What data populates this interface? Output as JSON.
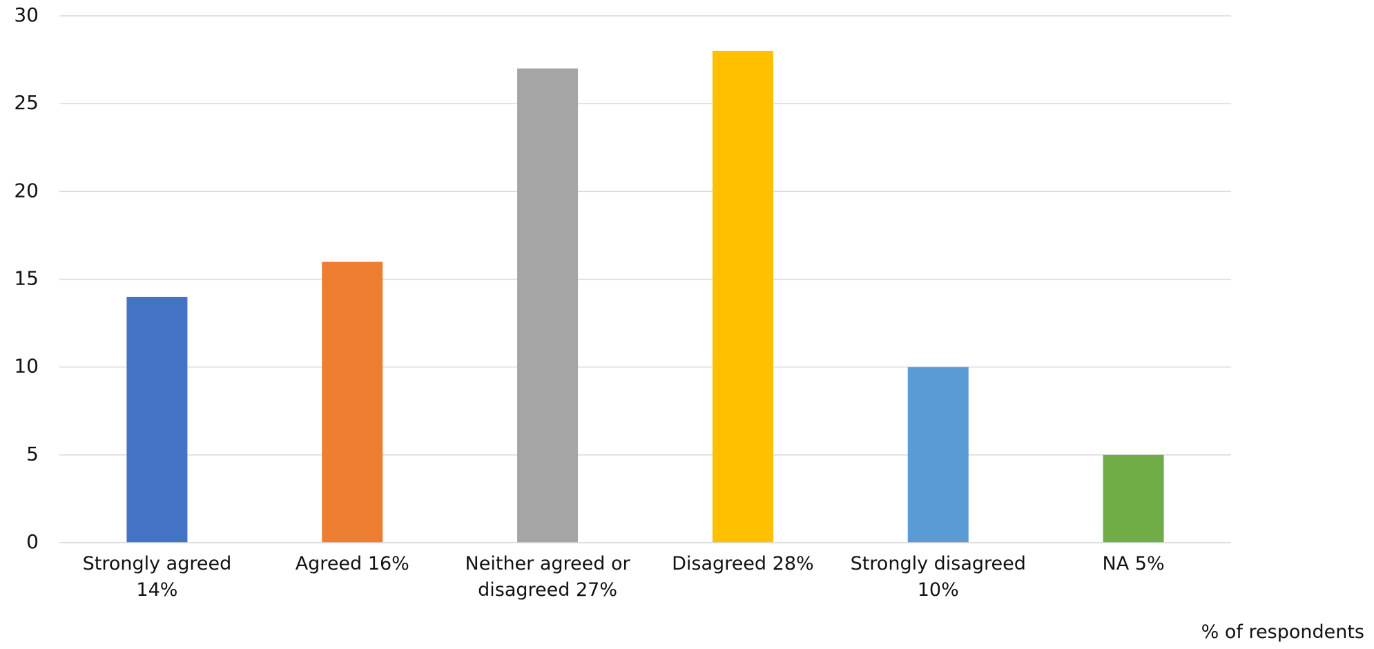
{
  "chart_data": {
    "type": "bar",
    "categories": [
      "Strongly agreed 14%",
      "Agreed 16%",
      "Neither agreed or disagreed 27%",
      "Disagreed 28%",
      "Strongly disagreed 10%",
      "NA 5%"
    ],
    "values": [
      14,
      16,
      27,
      28,
      10,
      5
    ],
    "colors": [
      "#4472c4",
      "#ed7d31",
      "#a5a5a5",
      "#ffc000",
      "#5b9bd5",
      "#70ad47"
    ],
    "ylim": [
      0,
      30
    ],
    "yticks": [
      0,
      5,
      10,
      15,
      20,
      25,
      30
    ],
    "grid": true,
    "xlabel": "% of respondents"
  }
}
